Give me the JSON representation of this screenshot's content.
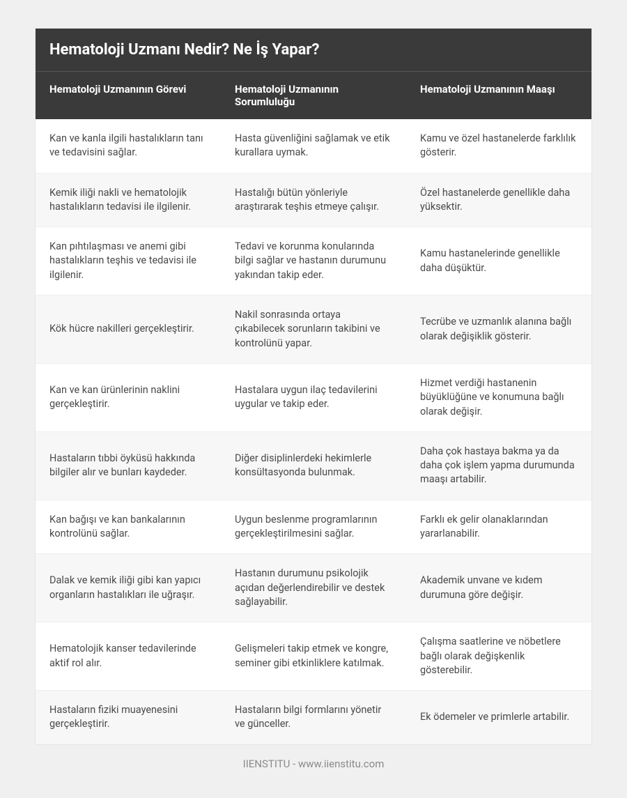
{
  "title": "Hematoloji Uzmanı Nedir? Ne İş Yapar?",
  "columns": [
    "Hematoloji Uzmanının Görevi",
    "Hematoloji Uzmanının Sorumluluğu",
    "Hematoloji Uzmanının Maaşı"
  ],
  "rows": [
    [
      "Kan ve kanla ilgili hastalıkların tanı ve tedavisini sağlar.",
      "Hasta güvenliğini sağlamak ve etik kurallara uymak.",
      "Kamu ve özel hastanelerde farklılık gösterir."
    ],
    [
      "Kemik iliği nakli ve hematolojik hastalıkların tedavisi ile ilgilenir.",
      "Hastalığı bütün yönleriyle araştırarak teşhis etmeye çalışır.",
      "Özel hastanelerde genellikle daha yüksektir."
    ],
    [
      "Kan pıhtılaşması ve anemi gibi hastalıkların teşhis ve tedavisi ile ilgilenir.",
      "Tedavi ve korunma konularında bilgi sağlar ve hastanın durumunu yakından takip eder.",
      "Kamu hastanelerinde genellikle daha düşüktür."
    ],
    [
      "Kök hücre nakilleri gerçekleştirir.",
      "Nakil sonrasında ortaya çıkabilecek sorunların takibini ve kontrolünü yapar.",
      "Tecrübe ve uzmanlık alanına bağlı olarak değişiklik gösterir."
    ],
    [
      "Kan ve kan ürünlerinin naklini gerçekleştirir.",
      "Hastalara uygun ilaç tedavilerini uygular ve takip eder.",
      "Hizmet verdiği hastanenin büyüklüğüne ve konumuna bağlı olarak değişir."
    ],
    [
      "Hastaların tıbbi öyküsü hakkında bilgiler alır ve bunları kaydeder.",
      "Diğer disiplinlerdeki hekimlerle konsültasyonda bulunmak.",
      "Daha çok hastaya bakma ya da daha çok işlem yapma durumunda maaşı artabilir."
    ],
    [
      "Kan bağışı ve kan bankalarının kontrolünü sağlar.",
      "Uygun beslenme programlarının gerçekleştirilmesini sağlar.",
      "Farklı ek gelir olanaklarından yararlanabilir."
    ],
    [
      "Dalak ve kemik iliği gibi kan yapıcı organların hastalıkları ile uğraşır.",
      "Hastanın durumunu psikolojik açıdan değerlendirebilir ve destek sağlayabilir.",
      "Akademik unvane ve kıdem durumuna göre değişir."
    ],
    [
      "Hematolojik kanser tedavilerinde aktif rol alır.",
      "Gelişmeleri takip etmek ve kongre, seminer gibi etkinliklere katılmak.",
      "Çalışma saatlerine ve nöbetlere bağlı olarak değişkenlik gösterebilir."
    ],
    [
      "Hastaların fiziki muayenesini gerçekleştirir.",
      "Hastaların bilgi formlarını yönetir ve günceller.",
      "Ek ödemeler ve primlerle artabilir."
    ]
  ],
  "footer": "IIENSTITU - www.iienstitu.com",
  "styling": {
    "page_background": "#f0f0f0",
    "container_background": "#ffffff",
    "container_border": "#e5e5e5",
    "header_background": "#3a3a3a",
    "header_text_color": "#ffffff",
    "header_divider": "#555555",
    "title_fontsize": 22,
    "th_fontsize": 15,
    "td_fontsize": 14.5,
    "text_color": "#4a4a4a",
    "row_even_background": "#f7f7f7",
    "row_odd_background": "#ffffff",
    "row_border": "#eeeeee",
    "footer_color": "#8a8a8a",
    "footer_fontsize": 15,
    "cell_padding": "18px 20px"
  }
}
